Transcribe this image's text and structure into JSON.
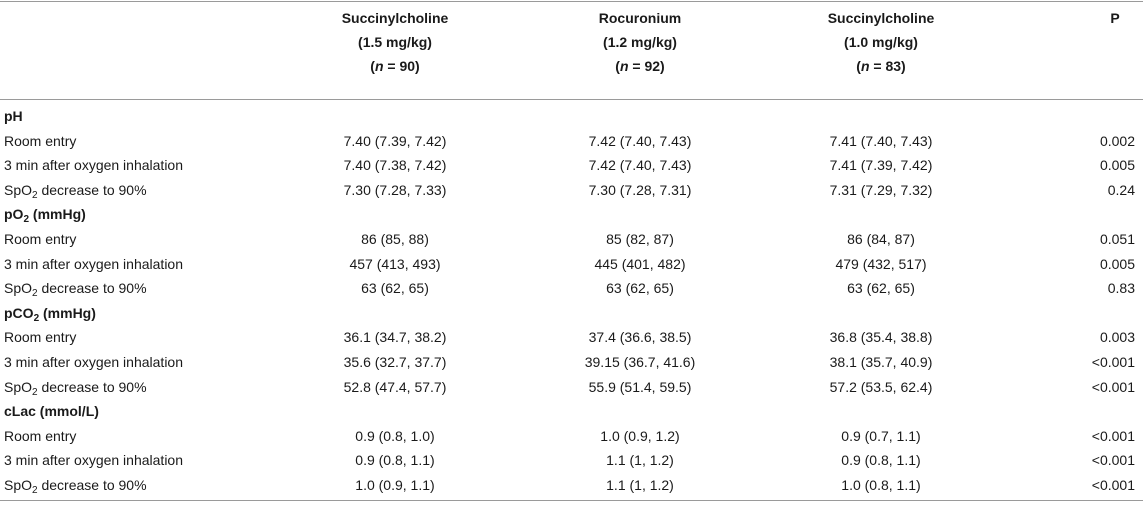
{
  "header": {
    "col1": {
      "line1": "Succinylcholine",
      "line2": "(1.5 mg/kg)",
      "n_label": "n",
      "n_value": " = 90)"
    },
    "col2": {
      "line1": "Rocuronium",
      "line2": "(1.2 mg/kg)",
      "n_label": "n",
      "n_value": " = 92)"
    },
    "col3": {
      "line1": "Succinylcholine",
      "line2": "(1.0 mg/kg)",
      "n_label": "n",
      "n_value": " = 83)"
    },
    "col4": "P"
  },
  "labels": {
    "room_entry": "Room entry",
    "after_oxygen": "3 min after oxygen inhalation",
    "spo2_prefix": "SpO",
    "spo2_sub": "2",
    "spo2_suffix": " decrease to 90%"
  },
  "sections": [
    {
      "prefix": "pH",
      "sub": "",
      "suffix": "",
      "rows": [
        [
          "7.40 (7.39, 7.42)",
          "7.42 (7.40, 7.43)",
          "7.41 (7.40, 7.43)",
          "0.002"
        ],
        [
          "7.40 (7.38, 7.42)",
          "7.42 (7.40, 7.43)",
          "7.41 (7.39, 7.42)",
          "0.005"
        ],
        [
          "7.30 (7.28, 7.33)",
          "7.30 (7.28, 7.31)",
          "7.31 (7.29, 7.32)",
          "0.24"
        ]
      ]
    },
    {
      "prefix": "pO",
      "sub": "2",
      "suffix": " (mmHg)",
      "rows": [
        [
          "86 (85, 88)",
          "85 (82, 87)",
          "86 (84, 87)",
          "0.051"
        ],
        [
          "457 (413, 493)",
          "445 (401, 482)",
          "479 (432, 517)",
          "0.005"
        ],
        [
          "63 (62, 65)",
          "63 (62, 65)",
          "63 (62, 65)",
          "0.83"
        ]
      ]
    },
    {
      "prefix": "pCO",
      "sub": "2",
      "suffix": " (mmHg)",
      "rows": [
        [
          "36.1 (34.7, 38.2)",
          "37.4 (36.6, 38.5)",
          "36.8 (35.4, 38.8)",
          "0.003"
        ],
        [
          "35.6 (32.7, 37.7)",
          "39.15 (36.7, 41.6)",
          "38.1 (35.7, 40.9)",
          "<0.001"
        ],
        [
          "52.8 (47.4, 57.7)",
          "55.9 (51.4, 59.5)",
          "57.2 (53.5, 62.4)",
          "<0.001"
        ]
      ]
    },
    {
      "prefix": "cLac (mmol/L)",
      "sub": "",
      "suffix": "",
      "rows": [
        [
          "0.9 (0.8, 1.0)",
          "1.0 (0.9, 1.2)",
          "0.9 (0.7, 1.1)",
          "<0.001"
        ],
        [
          "0.9 (0.8, 1.1)",
          "1.1 (1, 1.2)",
          "0.9 (0.8, 1.1)",
          "<0.001"
        ],
        [
          "1.0 (0.9, 1.1)",
          "1.1 (1, 1.2)",
          "1.0 (0.8, 1.1)",
          "<0.001"
        ]
      ]
    }
  ]
}
